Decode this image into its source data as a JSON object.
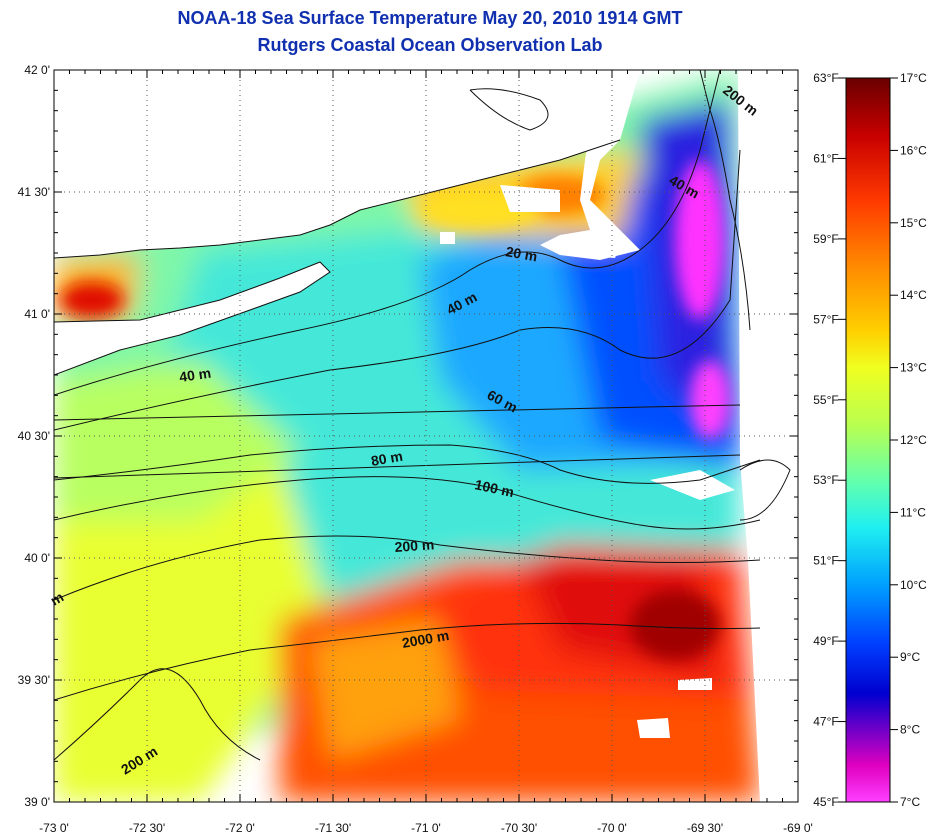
{
  "title": "NOAA-18 Sea Surface Temperature May 20, 2010 1914 GMT",
  "subtitle": "Rutgers Coastal Ocean Observation Lab",
  "lon_ticks": [
    "-73 0'",
    "-72 30'",
    "-72 0'",
    "-71 30'",
    "-71 0'",
    "-70 30'",
    "-70 0'",
    "-69 30'",
    "-69 0'"
  ],
  "lat_ticks": [
    "42 0'",
    "41 30'",
    "41 0'",
    "40 30'",
    "40 0'",
    "39 30'",
    "39 0'"
  ],
  "colorbar": {
    "fahrenheit": [
      "63°F",
      "61°F",
      "59°F",
      "57°F",
      "55°F",
      "53°F",
      "51°F",
      "49°F",
      "47°F",
      "45°F"
    ],
    "celsius": [
      "17°C",
      "16°C",
      "15°C",
      "14°C",
      "13°C",
      "12°C",
      "11°C",
      "10°C",
      "9°C",
      "8°C",
      "7°C"
    ],
    "colors": [
      "#6a0000",
      "#c80000",
      "#ff3a00",
      "#ff8a00",
      "#ffd000",
      "#e8ff20",
      "#a0ff60",
      "#40ffd0",
      "#00c8ff",
      "#0060ff",
      "#0000e0",
      "#6000c8",
      "#e000c0",
      "#ff30ff"
    ]
  },
  "contour_labels": {
    "c200_ne": "200 m",
    "c40_ne": "40 m",
    "c20": "20 m",
    "c40_b": "40 m",
    "c40_w": "40 m",
    "c60": "60 m",
    "c80": "80 m",
    "c100": "100 m",
    "c200_mid": "200 m",
    "c2000": "2000 m",
    "c200_sw": "200 m",
    "c_m": "m"
  },
  "colors": {
    "title": "#1030b0",
    "land": "#ffffff",
    "gridline": "#555555"
  }
}
